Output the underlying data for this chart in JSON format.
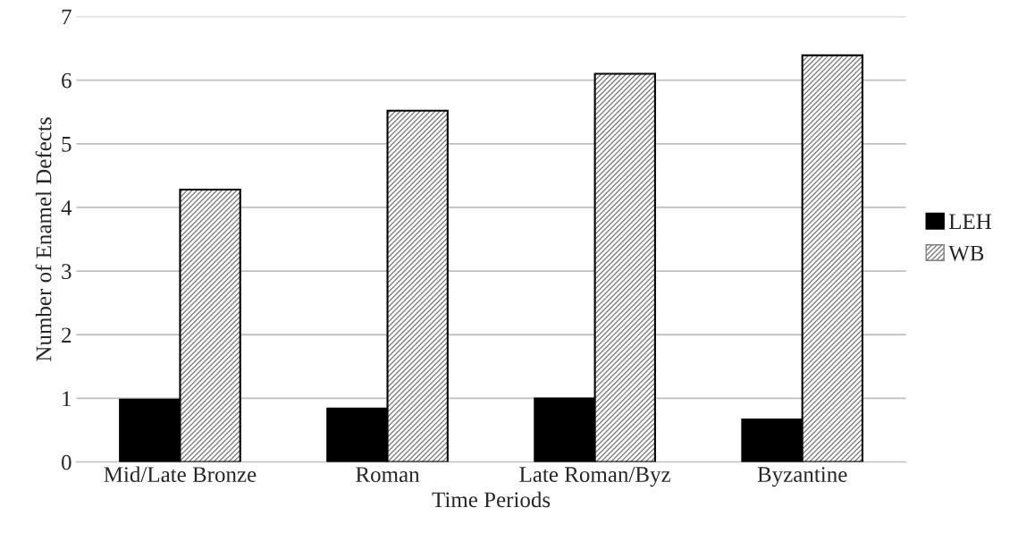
{
  "chart_data": {
    "type": "bar",
    "xlabel": "Time Periods",
    "ylabel": "Number of Enamel Defects",
    "categories": [
      "Mid/Late Bronze",
      "Roman",
      "Late Roman/Byz",
      "Byzantine"
    ],
    "series": [
      {
        "name": "LEH",
        "color": "#000000",
        "values": [
          0.98,
          0.84,
          1.0,
          0.67
        ]
      },
      {
        "name": "WB",
        "color": "#808080",
        "values": [
          4.28,
          5.52,
          6.1,
          6.39
        ]
      }
    ],
    "ylim": [
      0,
      7
    ],
    "yticks": [
      0,
      1,
      2,
      3,
      4,
      5,
      6,
      7
    ],
    "grid": "y",
    "legend": "right"
  }
}
